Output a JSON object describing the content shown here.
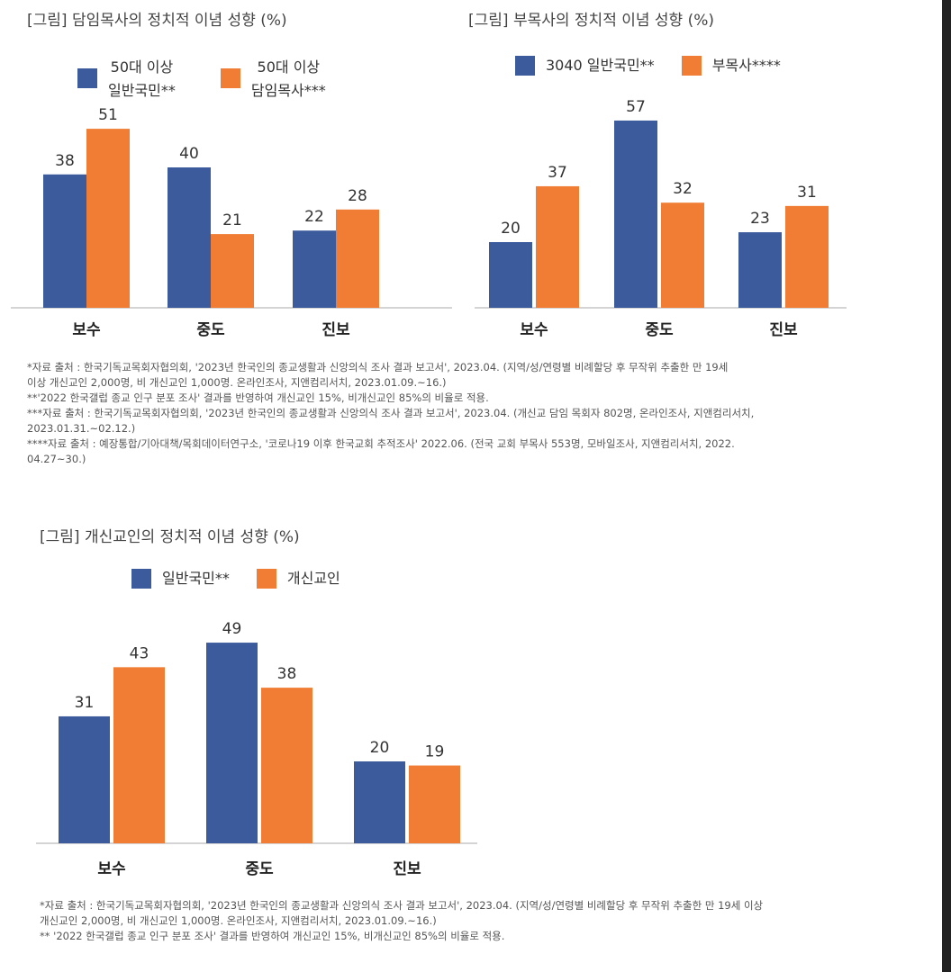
{
  "colors": {
    "blue": "#3b5b9c",
    "orange": "#f07d33",
    "axis": "#bbbbbb"
  },
  "chart_data": [
    {
      "type": "bar",
      "title": "[그림] 담임목사의 정치적 이념 성향 (%)",
      "categories": [
        "보수",
        "중도",
        "진보"
      ],
      "series": [
        {
          "name": "50대 이상\n일반국민**",
          "values": [
            38,
            40,
            22
          ],
          "color": "#3b5b9c"
        },
        {
          "name": "50대 이상\n담임목사***",
          "values": [
            51,
            21,
            28
          ],
          "color": "#f07d33"
        }
      ],
      "ylim": [
        0,
        55
      ],
      "legend": "top",
      "grid": false
    },
    {
      "type": "bar",
      "title": "[그림] 부목사의 정치적 이념 성향 (%)",
      "categories": [
        "보수",
        "중도",
        "진보"
      ],
      "series": [
        {
          "name": "3040 일반국민**",
          "values": [
            20,
            57,
            23
          ],
          "color": "#3b5b9c"
        },
        {
          "name": "부목사****",
          "values": [
            37,
            32,
            31
          ],
          "color": "#f07d33"
        }
      ],
      "ylim": [
        0,
        60
      ],
      "legend": "top",
      "grid": false
    },
    {
      "type": "bar",
      "title": "[그림] 개신교인의 정치적 이념 성향 (%)",
      "categories": [
        "보수",
        "중도",
        "진보"
      ],
      "series": [
        {
          "name": "일반국민**",
          "values": [
            31,
            49,
            20
          ],
          "color": "#3b5b9c"
        },
        {
          "name": "개신교인",
          "values": [
            43,
            38,
            19
          ],
          "color": "#f07d33"
        }
      ],
      "ylim": [
        0,
        52
      ],
      "legend": "top",
      "grid": false
    }
  ],
  "notes_top": "*자료 출처 : 한국기독교목회자협의회, '2023년 한국인의 종교생활과 신앙의식 조사 결과 보고서', 2023.04. (지역/성/연령별 비례할당 후 무작위 추출한 만 19세\n      이상 개신교인 2,000명, 비 개신교인 1,000명. 온라인조사, 지앤컴리서치, 2023.01.09.~16.)\n**'2022 한국갤럽 종교 인구 분포 조사' 결과를 반영하여 개신교인 15%, 비개신교인 85%의 비율로 적용.\n***자료 출처 : 한국기독교목회자협의회, '2023년 한국인의 종교생활과 신앙의식 조사 결과 보고서', 2023.04. (개신교 담임 목회자 802명, 온라인조사, 지앤컴리서치,\n      2023.01.31.~02.12.)\n****자료 출처 : 예장통합/기아대책/목회데이터연구소, '코로나19 이후 한국교회 추적조사' 2022.06. (전국 교회 부목사 553명, 모바일조사, 지앤컴리서치, 2022.\n      04.27~30.)",
  "notes_bottom": "*자료 출처 : 한국기독교목회자협의회, '2023년 한국인의 종교생활과 신앙의식 조사 결과 보고서', 2023.04. (지역/성/연령별 비례할당 후 무작위 추출한 만 19세 이상\n      개신교인 2,000명, 비 개신교인 1,000명. 온라인조사, 지앤컴리서치, 2023.01.09.~16.)\n** '2022 한국갤럽 종교 인구 분포 조사' 결과를 반영하여 개신교인 15%, 비개신교인 85%의 비율로 적용."
}
